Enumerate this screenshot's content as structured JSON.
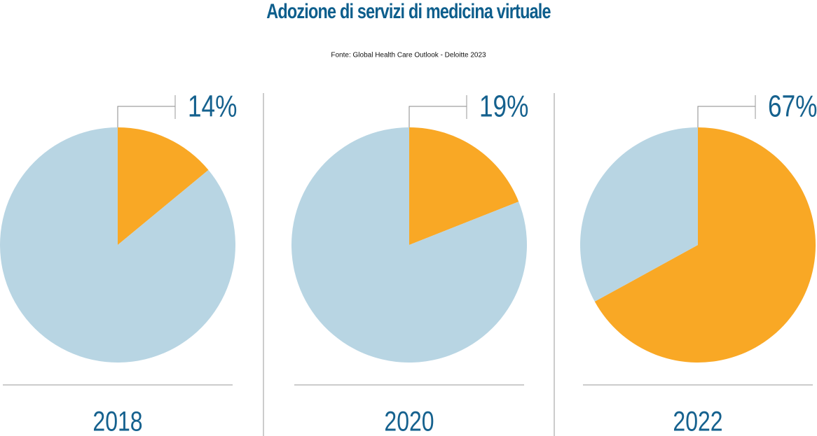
{
  "title": "Adozione di servizi di medicina virtuale",
  "source": "Fonte: Global Health Care Outlook - Deloitte 2023",
  "chart_data": [
    {
      "type": "pie",
      "title": "2018",
      "values": [
        14,
        86
      ],
      "value_labels": [
        "14%",
        null
      ],
      "colors": [
        "#f9a825",
        "#b8d5e3"
      ]
    },
    {
      "type": "pie",
      "title": "2020",
      "values": [
        19,
        81
      ],
      "value_labels": [
        "19%",
        null
      ],
      "colors": [
        "#f9a825",
        "#b8d5e3"
      ]
    },
    {
      "type": "pie",
      "title": "2022",
      "values": [
        67,
        33
      ],
      "value_labels": [
        "67%",
        null
      ],
      "colors": [
        "#f9a825",
        "#b8d5e3"
      ]
    }
  ]
}
